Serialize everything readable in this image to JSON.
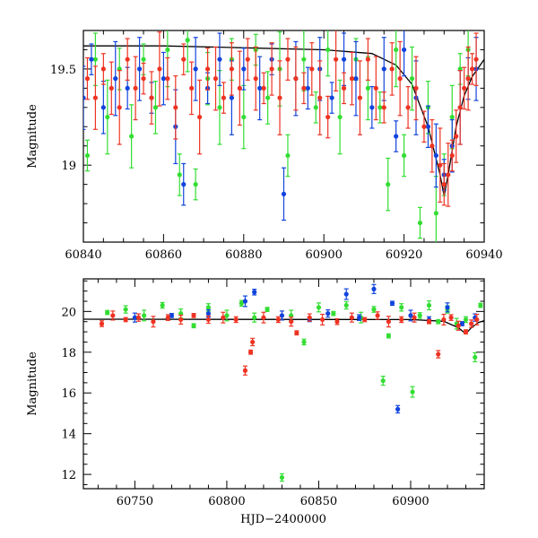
{
  "chart_data": [
    {
      "type": "scatter",
      "panel": "top",
      "title": "",
      "xlabel": "",
      "ylabel": "Magnitude",
      "xlim": [
        60840,
        60940
      ],
      "ylim": [
        19.7,
        18.6
      ],
      "y_inverted": true,
      "xticks": [
        60840,
        60860,
        60880,
        60900,
        60920,
        60940
      ],
      "yticks": [
        19,
        19.5
      ],
      "colors": {
        "green": "#33dd33",
        "blue": "#1144dd",
        "red": "#ee3322",
        "model": "#000000"
      },
      "series": [
        {
          "color": "green",
          "points": [
            [
              60841,
              19.05
            ],
            [
              60843,
              19.55
            ],
            [
              60846,
              19.25
            ],
            [
              60849,
              19.5
            ],
            [
              60852,
              19.15
            ],
            [
              60855,
              19.55
            ],
            [
              60858,
              19.3
            ],
            [
              60861,
              19.6
            ],
            [
              60864,
              18.95
            ],
            [
              60866,
              19.65
            ],
            [
              60868,
              18.9
            ],
            [
              60871,
              19.45
            ],
            [
              60874,
              19.3
            ],
            [
              60877,
              19.55
            ],
            [
              60880,
              19.25
            ],
            [
              60883,
              19.6
            ],
            [
              60886,
              19.35
            ],
            [
              60889,
              19.5
            ],
            [
              60891,
              19.05
            ],
            [
              60895,
              19.55
            ],
            [
              60898,
              19.3
            ],
            [
              60901,
              19.6
            ],
            [
              60904,
              19.25
            ],
            [
              60908,
              19.55
            ],
            [
              60911,
              19.4
            ],
            [
              60914,
              19.3
            ],
            [
              60916,
              18.9
            ],
            [
              60918,
              19.6
            ],
            [
              60920,
              19.05
            ],
            [
              60922,
              19.45
            ],
            [
              60924,
              18.7
            ],
            [
              60926,
              19.3
            ],
            [
              60928,
              18.75
            ],
            [
              60930,
              18.95
            ],
            [
              60932,
              19.25
            ],
            [
              60934,
              19.5
            ],
            [
              60936,
              19.6
            ]
          ]
        },
        {
          "color": "blue",
          "points": [
            [
              60840,
              19.35
            ],
            [
              60842,
              19.55
            ],
            [
              60845,
              19.3
            ],
            [
              60848,
              19.45
            ],
            [
              60851,
              19.4
            ],
            [
              60854,
              19.5
            ],
            [
              60857,
              19.35
            ],
            [
              60860,
              19.45
            ],
            [
              60863,
              19.2
            ],
            [
              60865,
              18.9
            ],
            [
              60868,
              19.5
            ],
            [
              60871,
              19.4
            ],
            [
              60874,
              19.55
            ],
            [
              60877,
              19.35
            ],
            [
              60880,
              19.5
            ],
            [
              60884,
              19.4
            ],
            [
              60887,
              19.55
            ],
            [
              60890,
              18.85
            ],
            [
              60893,
              19.45
            ],
            [
              60896,
              19.4
            ],
            [
              60899,
              19.5
            ],
            [
              60902,
              19.35
            ],
            [
              60905,
              19.55
            ],
            [
              60908,
              19.45
            ],
            [
              60912,
              19.3
            ],
            [
              60915,
              19.5
            ],
            [
              60918,
              19.15
            ],
            [
              60920,
              19.6
            ],
            [
              60923,
              19.35
            ],
            [
              60926,
              19.2
            ],
            [
              60928,
              19.05
            ],
            [
              60930,
              18.95
            ],
            [
              60932,
              19.1
            ],
            [
              60934,
              19.3
            ],
            [
              60936,
              19.45
            ],
            [
              60938,
              19.5
            ]
          ]
        },
        {
          "color": "red",
          "points": [
            [
              60841,
              19.45
            ],
            [
              60843,
              19.35
            ],
            [
              60845,
              19.5
            ],
            [
              60847,
              19.4
            ],
            [
              60849,
              19.3
            ],
            [
              60851,
              19.55
            ],
            [
              60853,
              19.4
            ],
            [
              60855,
              19.45
            ],
            [
              60857,
              19.35
            ],
            [
              60859,
              19.5
            ],
            [
              60861,
              19.45
            ],
            [
              60863,
              19.3
            ],
            [
              60865,
              19.55
            ],
            [
              60867,
              19.4
            ],
            [
              60869,
              19.25
            ],
            [
              60871,
              19.5
            ],
            [
              60873,
              19.45
            ],
            [
              60875,
              19.35
            ],
            [
              60877,
              19.5
            ],
            [
              60879,
              19.4
            ],
            [
              60881,
              19.55
            ],
            [
              60883,
              19.45
            ],
            [
              60885,
              19.4
            ],
            [
              60887,
              19.5
            ],
            [
              60889,
              19.35
            ],
            [
              60891,
              19.55
            ],
            [
              60893,
              19.45
            ],
            [
              60895,
              19.4
            ],
            [
              60897,
              19.5
            ],
            [
              60899,
              19.35
            ],
            [
              60901,
              19.25
            ],
            [
              60903,
              19.55
            ],
            [
              60905,
              19.4
            ],
            [
              60907,
              19.45
            ],
            [
              60909,
              19.35
            ],
            [
              60911,
              19.55
            ],
            [
              60913,
              19.4
            ],
            [
              60915,
              19.3
            ],
            [
              60917,
              19.5
            ],
            [
              60919,
              19.45
            ],
            [
              60921,
              19.3
            ],
            [
              60923,
              19.4
            ],
            [
              60925,
              19.2
            ],
            [
              60927,
              19.1
            ],
            [
              60929,
              19.0
            ],
            [
              60930,
              18.9
            ],
            [
              60931,
              18.95
            ],
            [
              60932,
              19.05
            ],
            [
              60933,
              19.15
            ],
            [
              60934,
              19.3
            ],
            [
              60935,
              19.4
            ],
            [
              60936,
              19.45
            ],
            [
              60937,
              19.5
            ],
            [
              60938,
              19.55
            ]
          ]
        }
      ],
      "model_line": [
        [
          60840,
          19.62
        ],
        [
          60860,
          19.62
        ],
        [
          60880,
          19.61
        ],
        [
          60900,
          19.6
        ],
        [
          60912,
          19.58
        ],
        [
          60918,
          19.52
        ],
        [
          60922,
          19.42
        ],
        [
          60926,
          19.2
        ],
        [
          60929,
          18.95
        ],
        [
          60930,
          18.84
        ],
        [
          60931,
          18.95
        ],
        [
          60933,
          19.2
        ],
        [
          60935,
          19.36
        ],
        [
          60937,
          19.46
        ],
        [
          60940,
          19.55
        ]
      ]
    },
    {
      "type": "scatter",
      "panel": "bottom",
      "title": "",
      "xlabel": "HJD−2400000",
      "ylabel": "Magnitude",
      "xlim": [
        60722,
        60940
      ],
      "ylim": [
        21.6,
        11.3
      ],
      "y_inverted": true,
      "xticks": [
        60750,
        60800,
        60850,
        60900
      ],
      "yticks": [
        12,
        14,
        16,
        18,
        20
      ],
      "colors": {
        "green": "#33dd33",
        "blue": "#1144dd",
        "red": "#ee3322",
        "model": "#000000"
      },
      "series": [
        {
          "color": "green",
          "points": [
            [
              60735,
              19.95
            ],
            [
              60745,
              20.1
            ],
            [
              60755,
              19.8
            ],
            [
              60765,
              20.3
            ],
            [
              60775,
              19.9
            ],
            [
              60782,
              19.3
            ],
            [
              60790,
              20.2
            ],
            [
              60800,
              19.8
            ],
            [
              60808,
              20.4
            ],
            [
              60815,
              19.7
            ],
            [
              60822,
              20.1
            ],
            [
              60830,
              11.85
            ],
            [
              60835,
              19.8
            ],
            [
              60842,
              18.5
            ],
            [
              60850,
              20.2
            ],
            [
              60858,
              19.9
            ],
            [
              60865,
              20.3
            ],
            [
              60873,
              19.7
            ],
            [
              60880,
              20.1
            ],
            [
              60885,
              16.6
            ],
            [
              60888,
              18.8
            ],
            [
              60895,
              20.2
            ],
            [
              60901,
              16.05
            ],
            [
              60905,
              19.8
            ],
            [
              60910,
              20.3
            ],
            [
              60915,
              19.5
            ],
            [
              60920,
              20.1
            ],
            [
              60925,
              19.4
            ],
            [
              60930,
              19.6
            ],
            [
              60935,
              17.75
            ],
            [
              60938,
              20.3
            ]
          ]
        },
        {
          "color": "blue",
          "points": [
            [
              60750,
              19.7
            ],
            [
              60770,
              19.8
            ],
            [
              60790,
              19.9
            ],
            [
              60810,
              20.5
            ],
            [
              60815,
              20.95
            ],
            [
              60830,
              19.8
            ],
            [
              60845,
              19.6
            ],
            [
              60855,
              19.9
            ],
            [
              60865,
              20.85
            ],
            [
              60872,
              19.7
            ],
            [
              60880,
              21.1
            ],
            [
              60890,
              20.4
            ],
            [
              60893,
              15.2
            ],
            [
              60900,
              19.8
            ],
            [
              60910,
              19.6
            ],
            [
              60920,
              20.2
            ],
            [
              60928,
              19.4
            ],
            [
              60935,
              19.7
            ]
          ]
        },
        {
          "color": "red",
          "points": [
            [
              60732,
              19.4
            ],
            [
              60738,
              19.8
            ],
            [
              60745,
              19.6
            ],
            [
              60752,
              19.7
            ],
            [
              60760,
              19.5
            ],
            [
              60768,
              19.7
            ],
            [
              60775,
              19.6
            ],
            [
              60782,
              19.8
            ],
            [
              60790,
              19.6
            ],
            [
              60798,
              19.7
            ],
            [
              60805,
              19.6
            ],
            [
              60810,
              17.1
            ],
            [
              60813,
              18.0
            ],
            [
              60814,
              18.5
            ],
            [
              60820,
              19.7
            ],
            [
              60828,
              19.6
            ],
            [
              60835,
              19.5
            ],
            [
              60838,
              18.95
            ],
            [
              60845,
              19.7
            ],
            [
              60852,
              19.6
            ],
            [
              60860,
              19.5
            ],
            [
              60868,
              19.7
            ],
            [
              60875,
              19.6
            ],
            [
              60882,
              19.8
            ],
            [
              60888,
              19.5
            ],
            [
              60895,
              19.6
            ],
            [
              60902,
              19.7
            ],
            [
              60910,
              19.5
            ],
            [
              60915,
              17.9
            ],
            [
              60918,
              19.6
            ],
            [
              60922,
              19.7
            ],
            [
              60926,
              19.3
            ],
            [
              60930,
              19.0
            ],
            [
              60933,
              19.4
            ],
            [
              60936,
              19.6
            ]
          ]
        }
      ],
      "model_line": [
        [
          60722,
          19.62
        ],
        [
          60900,
          19.6
        ],
        [
          60918,
          19.52
        ],
        [
          60926,
          19.2
        ],
        [
          60930,
          18.9
        ],
        [
          60933,
          19.2
        ],
        [
          60937,
          19.46
        ],
        [
          60940,
          19.55
        ]
      ]
    }
  ]
}
